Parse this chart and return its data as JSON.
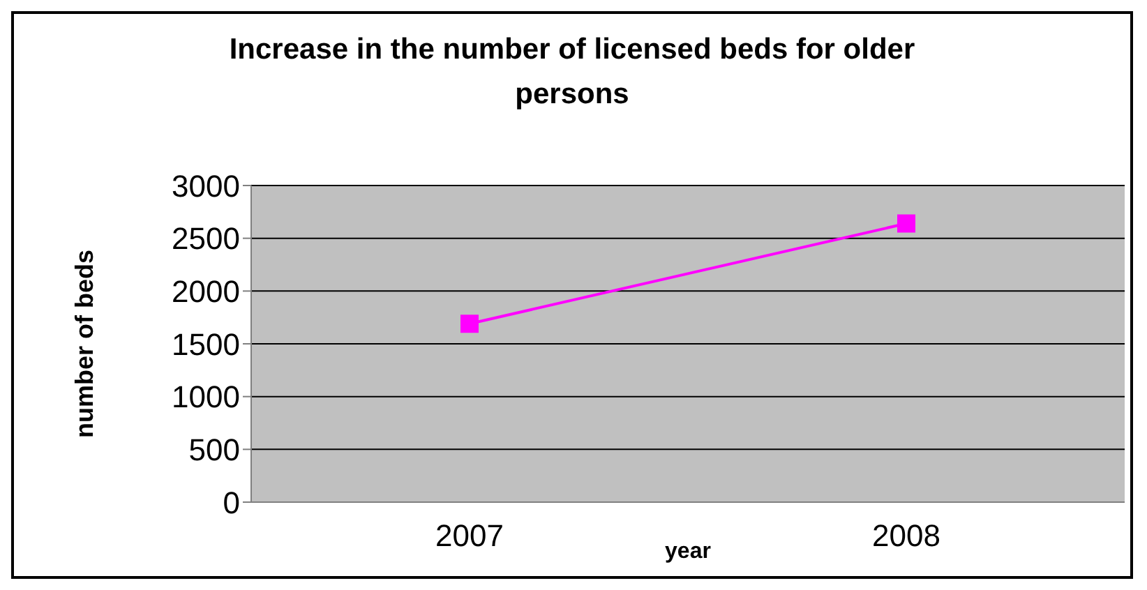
{
  "chart_data": {
    "type": "line",
    "title": "Increase in the number of licensed beds for older persons",
    "xlabel": "year",
    "ylabel": "number of beds",
    "categories": [
      "2007",
      "2008"
    ],
    "series": [
      {
        "color": "#ff00ff",
        "values": [
          1690,
          2640
        ]
      }
    ],
    "ylim": [
      0,
      3000
    ],
    "yticks": [
      0,
      500,
      1000,
      1500,
      2000,
      2500,
      3000
    ],
    "grid": "y",
    "legend": false,
    "marker": "square",
    "line_style": "solid"
  }
}
